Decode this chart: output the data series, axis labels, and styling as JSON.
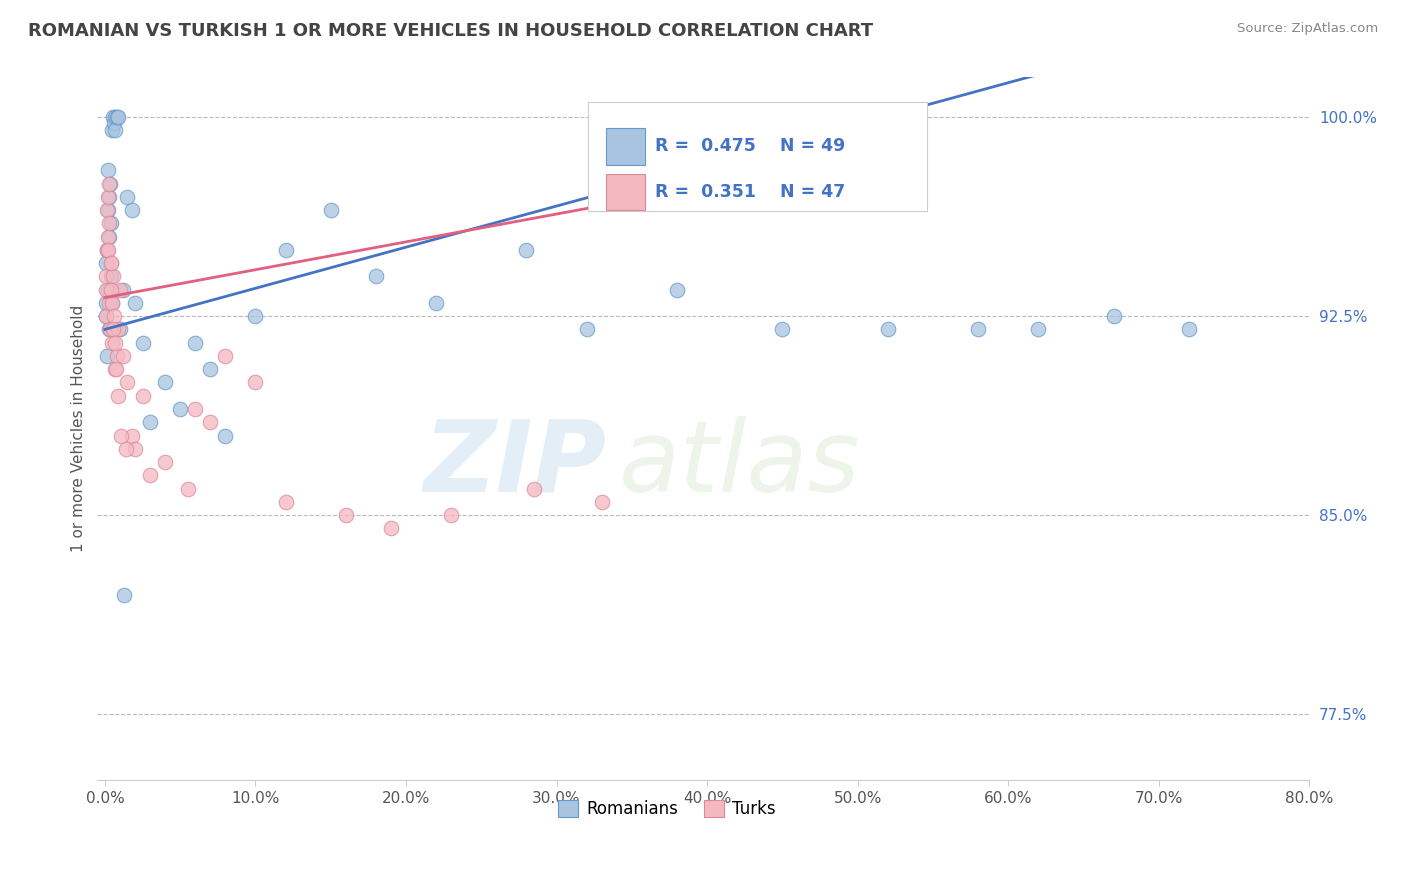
{
  "title": "ROMANIAN VS TURKISH 1 OR MORE VEHICLES IN HOUSEHOLD CORRELATION CHART",
  "source": "Source: ZipAtlas.com",
  "ylabel": "1 or more Vehicles in Household",
  "xlabel": "",
  "xlim": [
    -0.5,
    80.0
  ],
  "ylim": [
    75.0,
    101.5
  ],
  "xticks": [
    0.0,
    10.0,
    20.0,
    30.0,
    40.0,
    50.0,
    60.0,
    70.0,
    80.0
  ],
  "yticks": [
    77.5,
    85.0,
    92.5,
    100.0
  ],
  "romanian_color": "#a8c4e0",
  "turkish_color": "#f4b8c1",
  "romanian_edge": "#6699cc",
  "turkish_edge": "#dd8899",
  "reg_romanian_color": "#4472c4",
  "reg_turkish_color": "#e06080",
  "R_romanian": 0.475,
  "N_romanian": 49,
  "R_turkish": 0.351,
  "N_turkish": 47,
  "watermark_zip": "ZIP",
  "watermark_atlas": "atlas",
  "grid_color": "#bbbbbb",
  "background_color": "#ffffff",
  "romanians_x": [
    0.05,
    0.08,
    0.1,
    0.12,
    0.15,
    0.18,
    0.2,
    0.22,
    0.25,
    0.28,
    0.3,
    0.35,
    0.38,
    0.4,
    0.45,
    0.5,
    0.55,
    0.6,
    0.65,
    0.7,
    0.8,
    0.9,
    1.0,
    1.2,
    1.5,
    1.8,
    2.0,
    2.5,
    3.0,
    4.0,
    5.0,
    6.0,
    7.0,
    8.0,
    10.0,
    12.0,
    15.0,
    18.0,
    22.0,
    28.0,
    32.0,
    38.0,
    45.0,
    52.0,
    58.0,
    62.0,
    67.0,
    72.0,
    1.3
  ],
  "romanians_y": [
    93.0,
    94.5,
    92.5,
    91.0,
    95.0,
    93.5,
    96.5,
    98.0,
    97.0,
    92.0,
    95.5,
    97.5,
    96.0,
    94.0,
    93.0,
    99.5,
    100.0,
    99.8,
    100.0,
    99.5,
    100.0,
    100.0,
    92.0,
    93.5,
    97.0,
    96.5,
    93.0,
    91.5,
    88.5,
    90.0,
    89.0,
    91.5,
    90.5,
    88.0,
    92.5,
    95.0,
    96.5,
    94.0,
    93.0,
    95.0,
    92.0,
    93.5,
    92.0,
    92.0,
    92.0,
    92.0,
    92.5,
    92.0,
    82.0
  ],
  "turks_x": [
    0.05,
    0.08,
    0.1,
    0.12,
    0.15,
    0.18,
    0.2,
    0.25,
    0.28,
    0.3,
    0.35,
    0.4,
    0.45,
    0.5,
    0.55,
    0.6,
    0.7,
    0.8,
    0.9,
    1.0,
    1.2,
    1.5,
    1.8,
    2.0,
    2.5,
    3.0,
    4.0,
    5.5,
    6.0,
    7.0,
    8.0,
    10.0,
    12.0,
    16.0,
    19.0,
    23.0,
    28.5,
    33.0,
    0.22,
    0.38,
    0.42,
    0.55,
    0.65,
    0.75,
    0.85,
    1.1,
    1.4
  ],
  "turks_y": [
    94.0,
    92.5,
    93.5,
    95.0,
    96.5,
    95.5,
    97.0,
    97.5,
    96.0,
    93.0,
    92.0,
    94.5,
    91.5,
    93.0,
    94.0,
    92.5,
    90.5,
    91.0,
    92.0,
    93.5,
    91.0,
    90.0,
    88.0,
    87.5,
    89.5,
    86.5,
    87.0,
    86.0,
    89.0,
    88.5,
    91.0,
    90.0,
    85.5,
    85.0,
    84.5,
    85.0,
    86.0,
    85.5,
    95.0,
    94.5,
    93.5,
    92.0,
    91.5,
    90.5,
    89.5,
    88.0,
    87.5
  ]
}
